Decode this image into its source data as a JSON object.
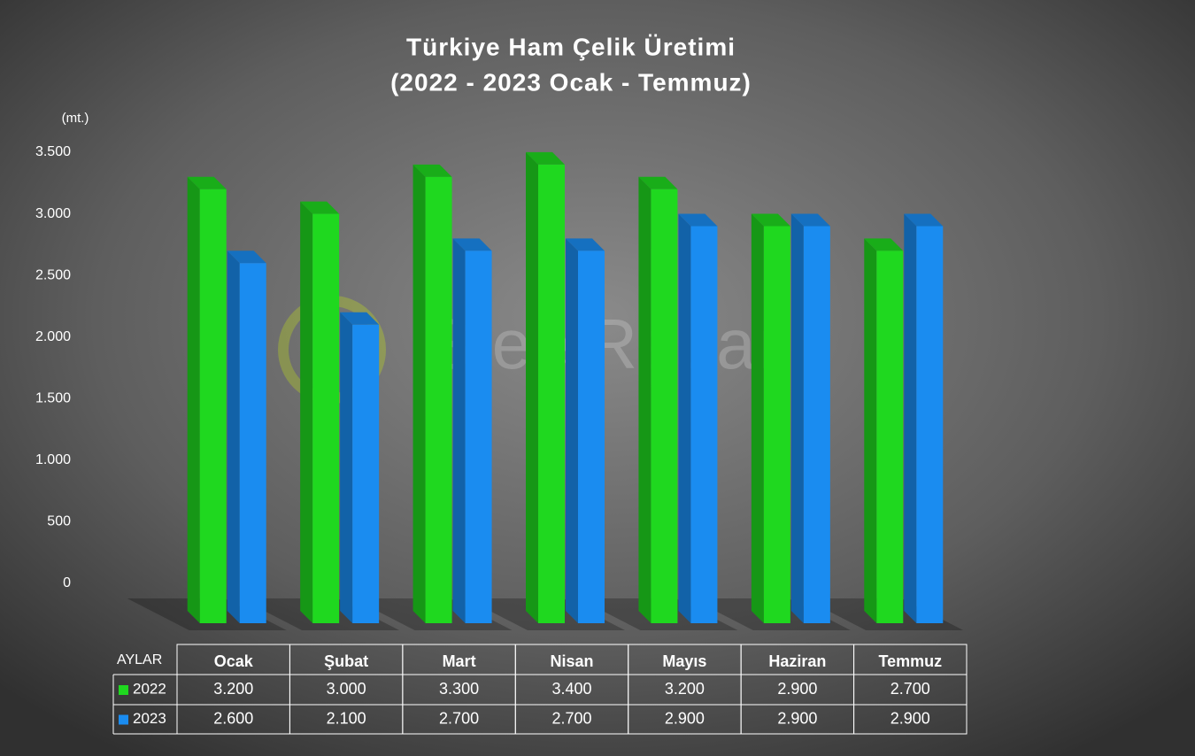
{
  "chart_data": {
    "type": "bar3d",
    "title": "Türkiye Ham Çelik Üretimi",
    "subtitle": "(2022 - 2023 Ocak - Temmuz)",
    "y_label": "(mt.)",
    "watermark": "SteelRadar",
    "table_header": "AYLAR",
    "categories": [
      "Ocak",
      "Şubat",
      "Mart",
      "Nisan",
      "Mayıs",
      "Haziran",
      "Temmuz"
    ],
    "series": [
      {
        "name": "2022",
        "color": "#1fd81f",
        "values": [
          3200,
          3000,
          3300,
          3400,
          3200,
          2900,
          2700
        ],
        "value_labels": [
          "3.200",
          "3.000",
          "3.300",
          "3.400",
          "3.200",
          "2.900",
          "2.700"
        ]
      },
      {
        "name": "2023",
        "color": "#1a8cf0",
        "values": [
          2600,
          2100,
          2700,
          2700,
          2900,
          2900,
          2900
        ],
        "value_labels": [
          "2.600",
          "2.100",
          "2.700",
          "2.700",
          "2.900",
          "2.900",
          "2.900"
        ]
      }
    ],
    "ylim": [
      0,
      3500
    ],
    "yticks": [
      0,
      500,
      {
        "value": 1000,
        "label": "1.000"
      },
      {
        "value": 1500,
        "label": "1.500"
      },
      {
        "value": 2000,
        "label": "2.000"
      },
      {
        "value": 2500,
        "label": "2.500"
      },
      {
        "value": 3000,
        "label": "3.000"
      },
      {
        "value": 3500,
        "label": "3.500"
      }
    ]
  }
}
